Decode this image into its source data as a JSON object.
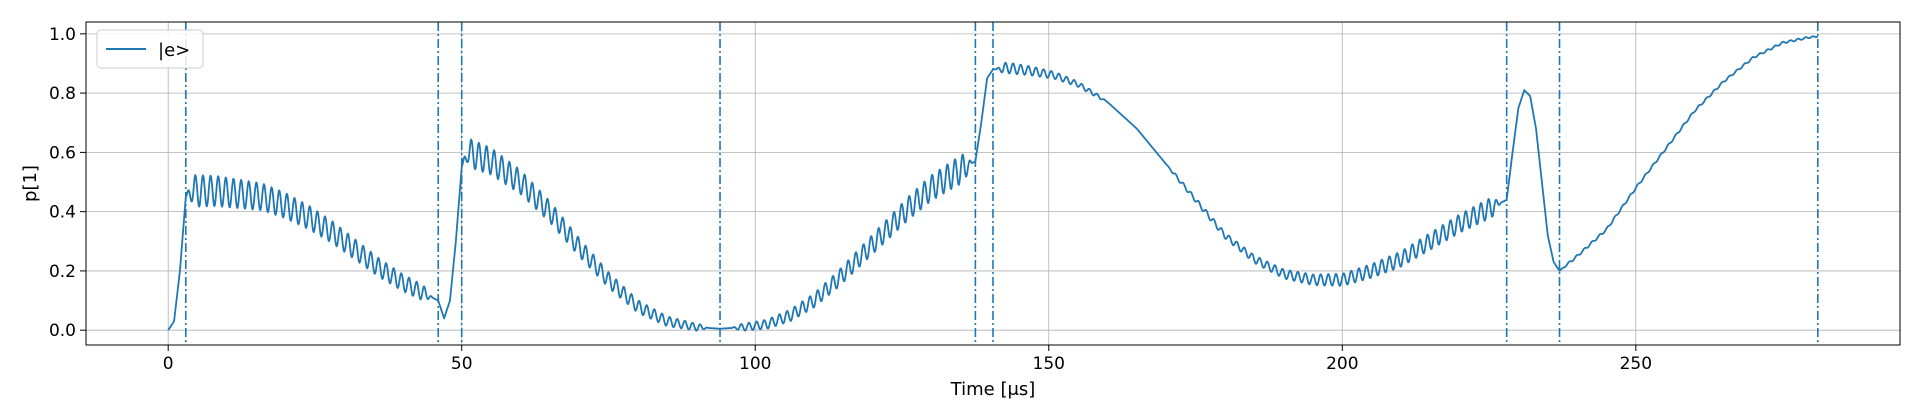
{
  "chart_data": {
    "type": "line",
    "title": "",
    "xlabel": "Time [μs]",
    "ylabel": "p[1]",
    "xlim": [
      -14,
      295
    ],
    "ylim": [
      -0.05,
      1.04
    ],
    "x_ticks": [
      0,
      50,
      100,
      150,
      200,
      250
    ],
    "x_tick_labels": [
      "0",
      "50",
      "100",
      "150",
      "200",
      "250"
    ],
    "y_ticks": [
      0.0,
      0.2,
      0.4,
      0.6,
      0.8,
      1.0
    ],
    "y_tick_labels": [
      "0.0",
      "0.2",
      "0.4",
      "0.6",
      "0.8",
      "1.0"
    ],
    "grid": true,
    "legend_position": "top-left",
    "series": [
      {
        "name": "|e>",
        "color": "#1f77b4",
        "x": [
          0,
          1,
          2,
          3,
          4,
          8,
          12,
          16,
          20,
          24,
          28,
          32,
          36,
          40,
          44,
          46,
          47,
          48,
          49,
          50,
          51,
          55,
          60,
          65,
          70,
          75,
          80,
          85,
          90,
          94,
          98,
          102,
          106,
          110,
          114,
          118,
          122,
          126,
          130,
          134,
          137.5,
          138.5,
          139.5,
          140.5,
          141,
          143,
          147,
          151,
          155,
          160,
          165,
          170,
          175,
          180,
          185,
          190,
          195,
          200,
          205,
          210,
          215,
          220,
          225,
          228,
          229,
          230,
          231,
          232,
          233,
          234,
          235,
          236,
          237,
          240,
          245,
          250,
          255,
          260,
          265,
          270,
          275,
          280,
          281
        ],
        "y": [
          0.0,
          0.03,
          0.2,
          0.45,
          0.47,
          0.47,
          0.46,
          0.45,
          0.42,
          0.38,
          0.33,
          0.27,
          0.21,
          0.16,
          0.12,
          0.1,
          0.04,
          0.1,
          0.3,
          0.55,
          0.6,
          0.57,
          0.5,
          0.4,
          0.28,
          0.17,
          0.08,
          0.03,
          0.01,
          0.005,
          0.01,
          0.02,
          0.05,
          0.1,
          0.17,
          0.25,
          0.33,
          0.41,
          0.48,
          0.53,
          0.57,
          0.7,
          0.85,
          0.88,
          0.88,
          0.885,
          0.875,
          0.86,
          0.83,
          0.77,
          0.68,
          0.56,
          0.44,
          0.32,
          0.24,
          0.19,
          0.17,
          0.17,
          0.2,
          0.24,
          0.3,
          0.36,
          0.41,
          0.44,
          0.6,
          0.75,
          0.81,
          0.79,
          0.68,
          0.5,
          0.32,
          0.23,
          0.2,
          0.25,
          0.34,
          0.48,
          0.61,
          0.74,
          0.84,
          0.92,
          0.97,
          0.99,
          0.99
        ],
        "oscillation_segments": [
          {
            "start": 3,
            "end": 45,
            "amp_start": 0.055,
            "amp_end": 0.025,
            "period": 1.3
          },
          {
            "start": 50,
            "end": 92,
            "amp_start": 0.05,
            "amp_end": 0.01,
            "period": 1.3
          },
          {
            "start": 96,
            "end": 137,
            "amp_start": 0.01,
            "amp_end": 0.05,
            "period": 1.3
          },
          {
            "start": 141,
            "end": 160,
            "amp_start": 0.02,
            "amp_end": 0.005,
            "period": 1.3
          },
          {
            "start": 170,
            "end": 227,
            "amp_start": 0.005,
            "amp_end": 0.035,
            "period": 1.3
          },
          {
            "start": 237,
            "end": 281,
            "amp_start": 0.004,
            "amp_end": 0.003,
            "period": 1.3
          }
        ]
      }
    ],
    "vlines": {
      "color": "#1f77b4",
      "style": "dash-dot",
      "x": [
        3,
        46,
        50,
        94,
        137.5,
        140.5,
        228,
        237,
        281
      ]
    }
  }
}
